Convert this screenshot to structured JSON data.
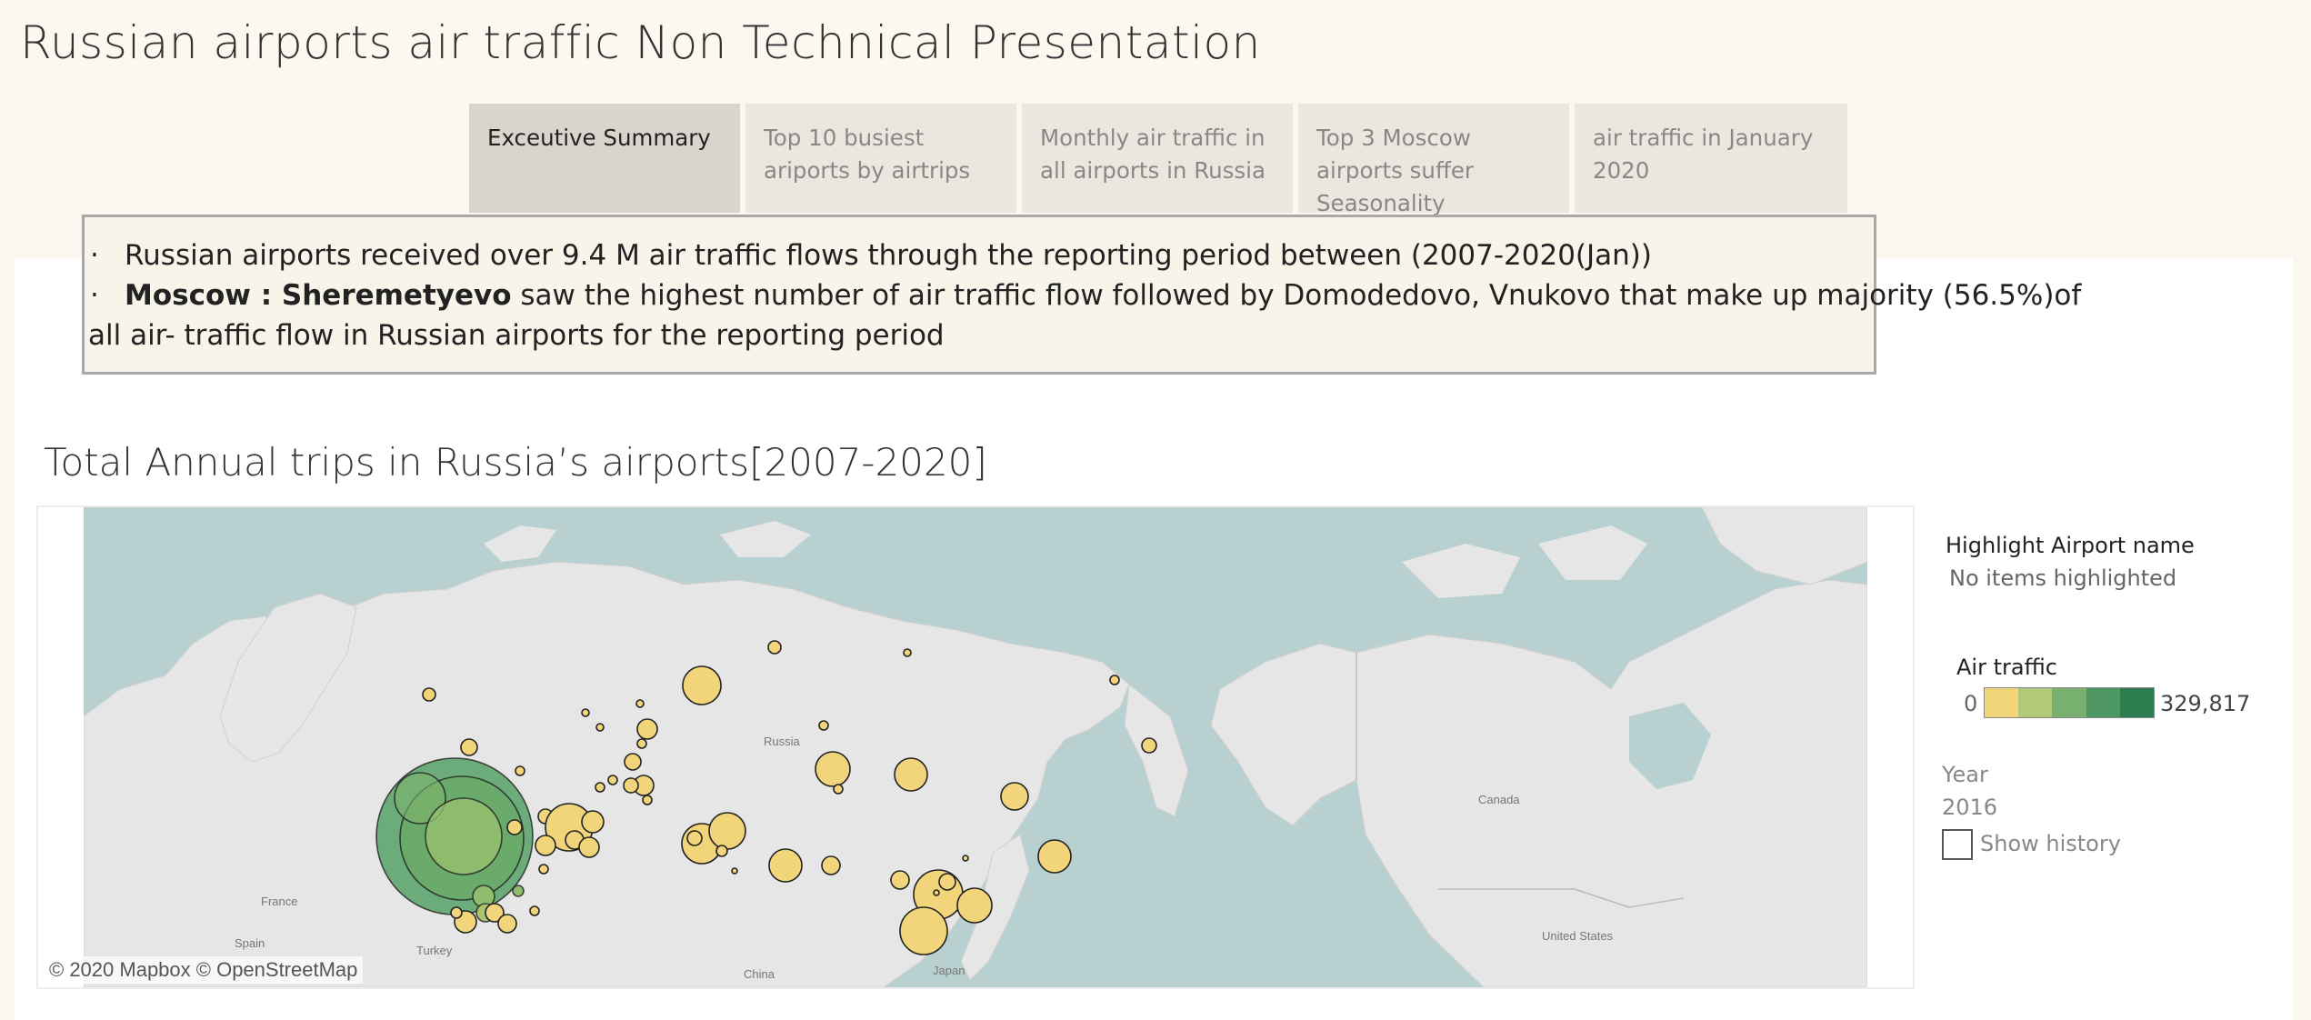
{
  "title": "Russian airports air traffic Non Technical Presentation",
  "tabs": [
    {
      "label": "Exceutive Summary"
    },
    {
      "label": "Top 10 busiest ariports by airtrips"
    },
    {
      "label": "Monthly air traffic in all airports in Russia"
    },
    {
      "label": "Top 3 Moscow airports suffer Seasonality"
    },
    {
      "label": "air traffic in January 2020"
    }
  ],
  "summary": {
    "bullet": "·",
    "line1": "Russian airports received over 9.4 M air traffic flows through the reporting period between (2007-2020(Jan))",
    "line2_bold": "Moscow : Sheremetyevo",
    "line2_rest": " saw the highest number of air traffic flow followed by Domodedovo, Vnukovo that   make up majority (56.5%)of",
    "line3": "all  air- traffic flow in Russian airports for the reporting period"
  },
  "map": {
    "title": "Total Annual trips in Russia’s airports[2007-2020]",
    "copyright": "© 2020 Mapbox © OpenStreetMap",
    "labels": {
      "russia": "Russia",
      "canada": "Canada",
      "united_states": "United States",
      "france": "France",
      "spain": "Spain",
      "turkey": "Turkey",
      "china": "China",
      "japan": "Japan"
    }
  },
  "highlight": {
    "title": "Highlight Airport name",
    "value": "No items highlighted"
  },
  "legend": {
    "title": "Air traffic",
    "min": "0",
    "max": "329,817",
    "colors": [
      "#f2d57b",
      "#b3c97a",
      "#78b06f",
      "#4e9763",
      "#2e7d4f"
    ]
  },
  "year": {
    "label": "Year",
    "value": "2016",
    "show_history_label": "Show history"
  }
}
